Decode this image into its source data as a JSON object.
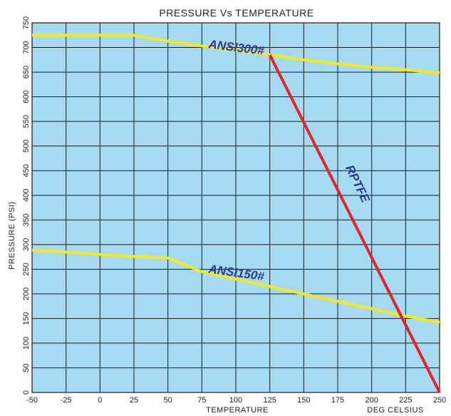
{
  "chart_data": {
    "type": "line",
    "title": "PRESSURE Vs TEMPERATURE",
    "xlabel": "TEMPERATURE",
    "xunit_label": "DEG  CELSIUS",
    "ylabel": "PRESSURE (PSI)",
    "xlim": [
      -50,
      250
    ],
    "ylim": [
      0,
      750
    ],
    "xticks": [
      -50,
      -25,
      0,
      25,
      50,
      75,
      100,
      125,
      150,
      175,
      200,
      225,
      250
    ],
    "yticks": [
      0,
      50,
      100,
      150,
      200,
      250,
      300,
      350,
      400,
      450,
      500,
      550,
      600,
      650,
      700,
      750
    ],
    "grid": true,
    "colors": {
      "plot_background": "#a6daf3",
      "grid": "#1a1a1a",
      "ansi_lines": "#f2ea1f",
      "rptfe_line": "#e0262a",
      "label_text": "#2e3a8c"
    },
    "series": [
      {
        "name": "ANSI300#",
        "color": "#f2ea1f",
        "x": [
          -50,
          -25,
          0,
          25,
          50,
          75,
          100,
          125,
          150,
          175,
          200,
          225,
          250
        ],
        "y": [
          725,
          725,
          725,
          725,
          713,
          703,
          695,
          685,
          675,
          667,
          660,
          655,
          648
        ]
      },
      {
        "name": "ANSI150#",
        "color": "#f2ea1f",
        "x": [
          -50,
          -25,
          0,
          25,
          50,
          75,
          100,
          125,
          150,
          175,
          200,
          225,
          250
        ],
        "y": [
          289,
          285,
          280,
          276,
          273,
          245,
          230,
          215,
          200,
          185,
          170,
          155,
          142
        ]
      },
      {
        "name": "RPTFE",
        "color": "#e0262a",
        "x": [
          125,
          250
        ],
        "y": [
          685,
          0
        ]
      }
    ]
  }
}
